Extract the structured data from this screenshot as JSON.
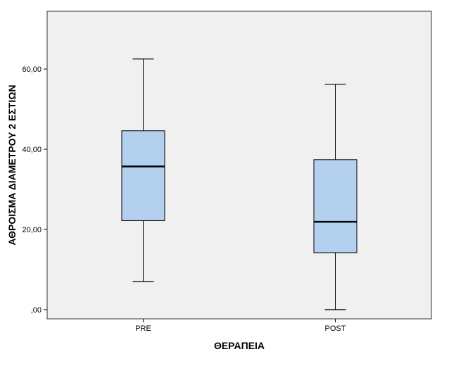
{
  "chart_data": {
    "type": "box",
    "title": "",
    "xlabel": "ΘΕΡΑΠΕΙΑ",
    "ylabel": "ΑΘΡΟΙΣΜΑ ΔΙΑΜΕΤΡΟΥ 2 ΕΣΤΙΩΝ",
    "ylim": [
      -2.3,
      74.4
    ],
    "yticks": [
      0,
      20,
      40,
      60
    ],
    "ytick_labels": [
      ",00",
      "20,00",
      "40,00",
      "60,00"
    ],
    "categories": [
      "PRE",
      "POST"
    ],
    "boxes": [
      {
        "category": "PRE",
        "min": 7.0,
        "q1": 22.2,
        "median": 35.7,
        "q3": 44.6,
        "max": 62.5
      },
      {
        "category": "POST",
        "min": 0.0,
        "q1": 14.2,
        "median": 21.9,
        "q3": 37.4,
        "max": 56.2
      }
    ],
    "grid": false,
    "legend": "none",
    "colors": {
      "box_fill": "#b3d1ef",
      "plot_background": "#f0f0f0",
      "line": "#000000",
      "frame": "#333333"
    }
  }
}
